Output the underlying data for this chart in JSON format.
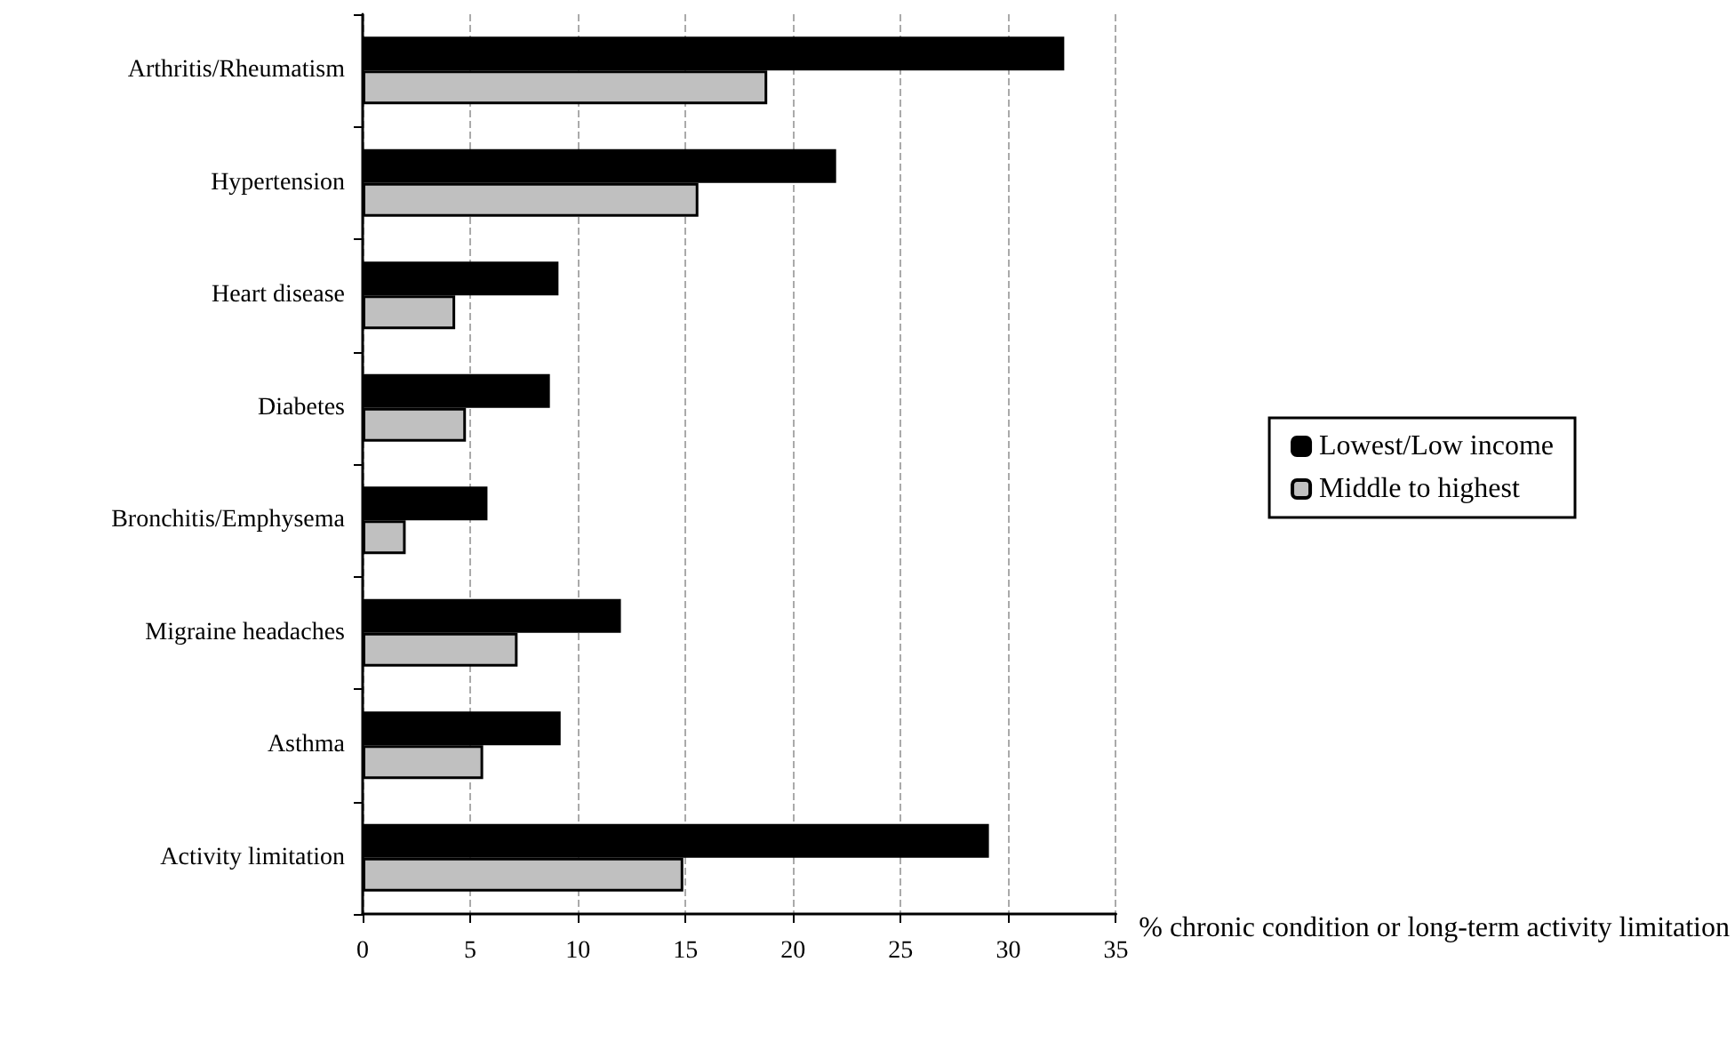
{
  "chart_data": {
    "type": "bar",
    "orientation": "horizontal",
    "xlabel": "% chronic condition or long-term activity limitation",
    "categories": [
      "Arthritis/Rheumatism",
      "Hypertension",
      "Heart disease",
      "Diabetes",
      "Bronchitis/Emphysema",
      "Migraine headaches",
      "Asthma",
      "Activity limitation"
    ],
    "series": [
      {
        "name": "Lowest/Low income",
        "color": "#000000",
        "values": [
          32.6,
          22.0,
          9.1,
          8.7,
          5.8,
          12.0,
          9.2,
          29.1
        ]
      },
      {
        "name": "Middle to highest",
        "color": "#c0c0c0",
        "values": [
          18.8,
          15.6,
          4.3,
          4.8,
          2.0,
          7.2,
          5.6,
          14.9
        ]
      }
    ],
    "xlim": [
      0,
      35
    ],
    "xticks": [
      0,
      5,
      10,
      15,
      20,
      25,
      30,
      35
    ],
    "grid": "x",
    "legend": "right"
  }
}
